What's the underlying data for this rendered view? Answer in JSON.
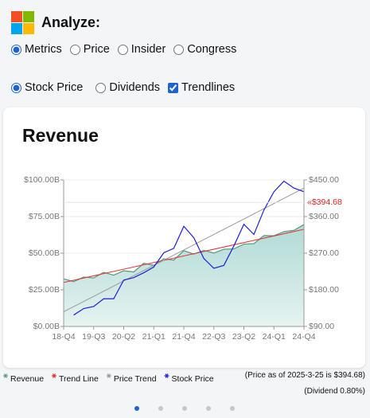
{
  "header": {
    "title": "Analyze:"
  },
  "mode_options": [
    {
      "label": "Metrics",
      "checked": true
    },
    {
      "label": "Price",
      "checked": false
    },
    {
      "label": "Insider",
      "checked": false
    },
    {
      "label": "Congress",
      "checked": false
    }
  ],
  "view_options": [
    {
      "label": "Stock Price",
      "type": "radio",
      "checked": true
    },
    {
      "label": "Dividends",
      "type": "radio",
      "checked": false
    },
    {
      "label": "Trendlines",
      "type": "checkbox",
      "checked": true
    }
  ],
  "chart_data": {
    "type": "line",
    "title": "Revenue",
    "categories": [
      "18-Q4",
      null,
      null,
      "19-Q3",
      null,
      null,
      "20-Q2",
      null,
      null,
      "21-Q1",
      null,
      null,
      "21-Q4",
      null,
      null,
      "22-Q3",
      null,
      null,
      "23-Q2",
      null,
      null,
      "24-Q1",
      null,
      null,
      "24-Q4"
    ],
    "series": [
      {
        "name": "Revenue",
        "kind": "area",
        "color": "#5a9e82",
        "axis": "y",
        "values": [
          32.5,
          30.6,
          33.7,
          33.1,
          36.9,
          35.0,
          38.0,
          37.2,
          43.1,
          41.7,
          46.2,
          45.3,
          51.7,
          49.4,
          51.9,
          50.1,
          52.7,
          52.9,
          56.2,
          56.5,
          62.0,
          61.9,
          64.7,
          65.6,
          69.6
        ]
      },
      {
        "name": "Trend Line",
        "kind": "trend",
        "color": "#e53030",
        "axis": "y",
        "start": 30,
        "end": 66.3
      },
      {
        "name": "Price Trend",
        "kind": "trend",
        "color": "#9a9a9a",
        "axis": "y2",
        "start": 126,
        "end": 430
      },
      {
        "name": "Stock Price",
        "kind": "line",
        "color": "#1f1fd6",
        "axis": "y2",
        "values": [
          null,
          118,
          134,
          139,
          158,
          158,
          204,
          210,
          222,
          236,
          271,
          282,
          336,
          308,
          257,
          233,
          240,
          288,
          341,
          316,
          376,
          421,
          447,
          430,
          421
        ]
      }
    ],
    "ylim": [
      0,
      100
    ],
    "yticks": [
      {
        "value": 0,
        "label": "$0.00B"
      },
      {
        "value": 25,
        "label": "$25.00B"
      },
      {
        "value": 50,
        "label": "$50.00B"
      },
      {
        "value": 75,
        "label": "$75.00B"
      },
      {
        "value": 100,
        "label": "$100.00B"
      }
    ],
    "y2lim": [
      90,
      450
    ],
    "y2ticks": [
      {
        "value": 90,
        "label": "$90.00"
      },
      {
        "value": 180,
        "label": "$180.00"
      },
      {
        "value": 270,
        "label": "$270.00"
      },
      {
        "value": 360,
        "label": "$360.00"
      },
      {
        "value": 450,
        "label": "$450.00"
      }
    ],
    "price_marker": {
      "value": 394.68,
      "label": "«$394.68",
      "color": "#e02020"
    },
    "grid": true
  },
  "notes": [
    "(Price as of 2025-3-25 is $394.68)",
    "(Dividend 0.80%)"
  ],
  "pager": {
    "count": 5,
    "active": 0
  }
}
